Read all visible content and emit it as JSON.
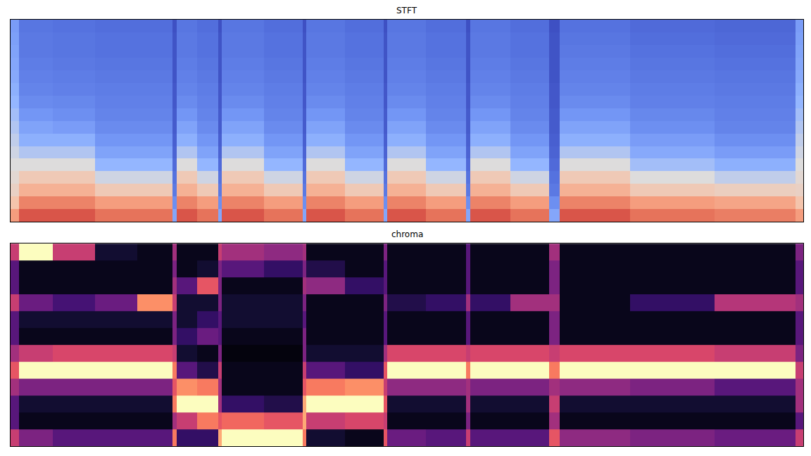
{
  "chart_data": [
    {
      "type": "heatmap",
      "title": "STFT",
      "x": [
        0,
        12,
        60,
        120,
        180,
        230,
        236,
        265,
        295,
        300,
        360,
        415,
        420,
        475,
        530,
        535,
        590,
        647,
        653,
        710,
        765,
        780,
        880,
        1000,
        1115,
        1126
      ],
      "y": [
        0,
        1,
        2,
        3,
        4,
        5,
        6,
        7,
        8,
        9,
        10,
        11,
        12,
        13,
        14,
        15,
        16
      ],
      "z": [
        [
          -20,
          -8,
          -8,
          -12,
          -12,
          -55,
          -8,
          -12,
          -55,
          -8,
          -12,
          -55,
          -8,
          -12,
          -55,
          -8,
          -12,
          -55,
          -8,
          -12,
          -55,
          -8,
          -12,
          -14,
          -20
        ],
        [
          -30,
          -15,
          -15,
          -20,
          -20,
          -62,
          -15,
          -20,
          -62,
          -15,
          -20,
          -62,
          -15,
          -20,
          -62,
          -15,
          -20,
          -62,
          -15,
          -20,
          -62,
          -15,
          -20,
          -22,
          -30
        ],
        [
          -35,
          -25,
          -25,
          -32,
          -32,
          -68,
          -25,
          -32,
          -68,
          -25,
          -32,
          -68,
          -25,
          -32,
          -68,
          -25,
          -32,
          -68,
          -25,
          -32,
          -68,
          -25,
          -32,
          -34,
          -35
        ],
        [
          -38,
          -32,
          -32,
          -42,
          -42,
          -70,
          -32,
          -42,
          -70,
          -32,
          -42,
          -70,
          -32,
          -42,
          -70,
          -32,
          -42,
          -70,
          -32,
          -42,
          -70,
          -32,
          -40,
          -44,
          -38
        ],
        [
          -40,
          -40,
          -40,
          -50,
          -50,
          -72,
          -40,
          -50,
          -72,
          -40,
          -50,
          -72,
          -40,
          -50,
          -72,
          -40,
          -50,
          -72,
          -40,
          -50,
          -72,
          -40,
          -48,
          -52,
          -40
        ],
        [
          -42,
          -46,
          -46,
          -56,
          -56,
          -74,
          -46,
          -56,
          -74,
          -46,
          -56,
          -74,
          -46,
          -56,
          -74,
          -46,
          -56,
          -74,
          -46,
          -56,
          -74,
          -46,
          -54,
          -58,
          -42
        ],
        [
          -44,
          -52,
          -52,
          -60,
          -60,
          -75,
          -52,
          -60,
          -75,
          -52,
          -60,
          -75,
          -52,
          -60,
          -75,
          -52,
          -60,
          -75,
          -52,
          -60,
          -75,
          -52,
          -58,
          -62,
          -44
        ],
        [
          -46,
          -56,
          -58,
          -63,
          -63,
          -76,
          -56,
          -63,
          -76,
          -56,
          -63,
          -76,
          -56,
          -63,
          -76,
          -56,
          -63,
          -76,
          -56,
          -63,
          -76,
          -56,
          -62,
          -65,
          -46
        ],
        [
          -48,
          -60,
          -62,
          -65,
          -65,
          -76,
          -60,
          -65,
          -76,
          -60,
          -65,
          -76,
          -60,
          -65,
          -76,
          -60,
          -65,
          -76,
          -60,
          -65,
          -76,
          -60,
          -64,
          -66,
          -48
        ],
        [
          -50,
          -63,
          -64,
          -66,
          -66,
          -77,
          -63,
          -66,
          -77,
          -63,
          -66,
          -77,
          -63,
          -66,
          -77,
          -63,
          -66,
          -77,
          -63,
          -66,
          -77,
          -63,
          -66,
          -67,
          -50
        ],
        [
          -52,
          -65,
          -66,
          -67,
          -67,
          -77,
          -65,
          -67,
          -77,
          -65,
          -67,
          -77,
          -65,
          -67,
          -77,
          -65,
          -67,
          -77,
          -65,
          -67,
          -77,
          -65,
          -67,
          -68,
          -52
        ],
        [
          -54,
          -66,
          -67,
          -68,
          -68,
          -78,
          -66,
          -68,
          -78,
          -66,
          -68,
          -78,
          -66,
          -68,
          -78,
          -66,
          -68,
          -78,
          -66,
          -68,
          -78,
          -66,
          -68,
          -69,
          -54
        ],
        [
          -55,
          -67,
          -68,
          -69,
          -69,
          -78,
          -67,
          -69,
          -78,
          -67,
          -69,
          -78,
          -67,
          -69,
          -78,
          -67,
          -69,
          -78,
          -67,
          -69,
          -78,
          -67,
          -69,
          -70,
          -55
        ],
        [
          -56,
          -68,
          -69,
          -70,
          -70,
          -78,
          -68,
          -70,
          -78,
          -68,
          -70,
          -78,
          -68,
          -70,
          -78,
          -68,
          -70,
          -78,
          -68,
          -70,
          -78,
          -68,
          -70,
          -71,
          -56
        ],
        [
          -57,
          -68,
          -69,
          -70,
          -70,
          -78,
          -68,
          -70,
          -78,
          -68,
          -70,
          -78,
          -68,
          -70,
          -78,
          -68,
          -70,
          -78,
          -68,
          -70,
          -78,
          -69,
          -71,
          -72,
          -57
        ],
        [
          -58,
          -69,
          -70,
          -71,
          -71,
          -79,
          -69,
          -71,
          -79,
          -69,
          -71,
          -79,
          -69,
          -71,
          -79,
          -69,
          -71,
          -79,
          -69,
          -71,
          -79,
          -70,
          -72,
          -73,
          -58
        ]
      ],
      "xlim": [
        0,
        1126
      ],
      "ylim": [
        0,
        16
      ],
      "zlim": [
        -80,
        0
      ],
      "tick_labels": false
    },
    {
      "type": "heatmap",
      "title": "chroma",
      "x": [
        0,
        12,
        60,
        120,
        180,
        230,
        236,
        265,
        295,
        300,
        360,
        415,
        420,
        475,
        530,
        535,
        590,
        647,
        653,
        710,
        765,
        780,
        880,
        1000,
        1115,
        1126
      ],
      "y": [
        0,
        1,
        2,
        3,
        4,
        5,
        6,
        7,
        8,
        9,
        10,
        11,
        12
      ],
      "z": [
        [
          0.6,
          0.4,
          0.3,
          0.3,
          0.3,
          0.8,
          0.2,
          0.2,
          0.9,
          1,
          1,
          0.8,
          0.1,
          0.05,
          0.7,
          0.35,
          0.3,
          0.6,
          0.3,
          0.3,
          0.7,
          0.45,
          0.4,
          0.35,
          0.6
        ],
        [
          0.3,
          0.05,
          0.05,
          0.05,
          0.05,
          0.5,
          0.6,
          0.8,
          0.7,
          0.75,
          0.7,
          0.9,
          0.6,
          0.65,
          0.6,
          0.05,
          0.05,
          0.4,
          0.05,
          0.05,
          0.5,
          0.05,
          0.05,
          0.05,
          0.3
        ],
        [
          0.3,
          0.1,
          0.1,
          0.1,
          0.1,
          0.8,
          1,
          1,
          0.5,
          0.2,
          0.15,
          0.9,
          1,
          1,
          0.7,
          0.1,
          0.1,
          0.5,
          0.1,
          0.1,
          0.6,
          0.1,
          0.1,
          0.1,
          0.5
        ],
        [
          0.5,
          0.4,
          0.4,
          0.4,
          0.4,
          0.7,
          0.85,
          0.8,
          0.5,
          0.05,
          0.05,
          0.7,
          0.8,
          0.85,
          0.6,
          0.45,
          0.45,
          0.5,
          0.4,
          0.4,
          0.5,
          0.45,
          0.4,
          0.3,
          0.5
        ],
        [
          0.7,
          1,
          1,
          1,
          1,
          0.8,
          0.3,
          0.15,
          0.6,
          0.05,
          0.05,
          0.6,
          0.3,
          0.2,
          0.7,
          1,
          1,
          0.8,
          1,
          1,
          0.8,
          1,
          1,
          1,
          0.6
        ],
        [
          0.5,
          0.6,
          0.65,
          0.65,
          0.65,
          0.6,
          0.1,
          0.05,
          0.4,
          0.02,
          0.02,
          0.4,
          0.1,
          0.1,
          0.5,
          0.65,
          0.65,
          0.6,
          0.65,
          0.65,
          0.6,
          0.65,
          0.65,
          0.6,
          0.4
        ],
        [
          0.3,
          0.05,
          0.05,
          0.05,
          0.05,
          0.4,
          0.2,
          0.35,
          0.3,
          0.05,
          0.05,
          0.4,
          0.05,
          0.05,
          0.3,
          0.05,
          0.05,
          0.3,
          0.05,
          0.05,
          0.4,
          0.05,
          0.05,
          0.05,
          0.3
        ],
        [
          0.3,
          0.1,
          0.1,
          0.1,
          0.1,
          0.4,
          0.1,
          0.2,
          0.3,
          0.1,
          0.1,
          0.3,
          0.05,
          0.05,
          0.3,
          0.05,
          0.05,
          0.3,
          0.05,
          0.05,
          0.4,
          0.05,
          0.05,
          0.05,
          0.3
        ],
        [
          0.6,
          0.35,
          0.25,
          0.35,
          0.85,
          0.6,
          0.1,
          0.1,
          0.4,
          0.1,
          0.1,
          0.4,
          0.05,
          0.05,
          0.4,
          0.15,
          0.2,
          0.5,
          0.2,
          0.5,
          0.5,
          0.05,
          0.2,
          0.55,
          0.5
        ],
        [
          0.3,
          0.05,
          0.05,
          0.05,
          0.05,
          0.5,
          0.3,
          0.7,
          0.4,
          0.05,
          0.05,
          0.5,
          0.45,
          0.2,
          0.3,
          0.05,
          0.05,
          0.3,
          0.05,
          0.05,
          0.4,
          0.05,
          0.05,
          0.05,
          0.3
        ],
        [
          0.3,
          0.05,
          0.05,
          0.05,
          0.05,
          0.4,
          0.05,
          0.1,
          0.4,
          0.3,
          0.2,
          0.4,
          0.15,
          0.05,
          0.3,
          0.05,
          0.05,
          0.3,
          0.05,
          0.05,
          0.4,
          0.05,
          0.05,
          0.05,
          0.3
        ],
        [
          0.6,
          1,
          0.6,
          0.1,
          0.05,
          0.5,
          0.05,
          0.05,
          0.6,
          0.5,
          0.45,
          0.5,
          0.05,
          0.05,
          0.4,
          0.05,
          0.05,
          0.3,
          0.05,
          0.05,
          0.5,
          0.05,
          0.05,
          0.05,
          0.4
        ]
      ],
      "xlim": [
        0,
        1126
      ],
      "ylim": [
        0,
        12
      ],
      "zlim": [
        0,
        1
      ],
      "tick_labels": false
    }
  ]
}
